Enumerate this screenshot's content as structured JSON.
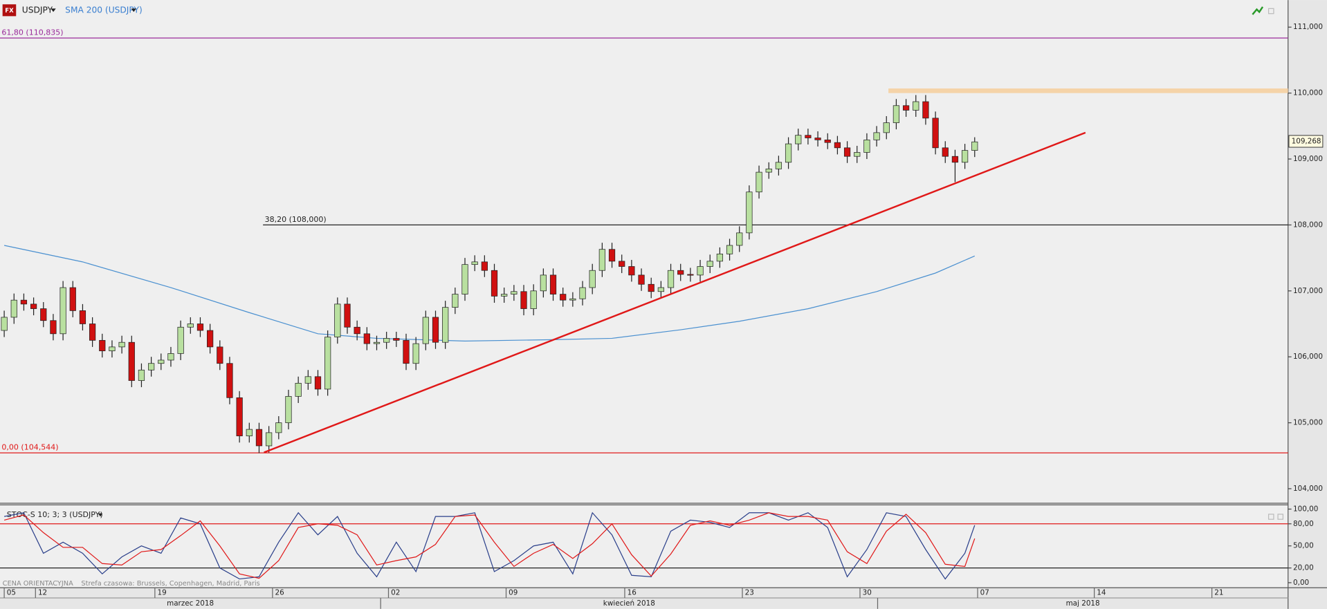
{
  "header": {
    "symbol": "USDJPY",
    "indicator": "SMA 200 (USDJPY)",
    "icon": "FX"
  },
  "footer": {
    "note": "CENA ORIENTACYJNA",
    "timezone": "Strefa czasowa: Brussels, Copenhagen, Madrid, Paris"
  },
  "chart_data": [
    {
      "type": "candlestick",
      "title": "USDJPY",
      "up_color": "#b9e0a0",
      "down_color": "#d01010",
      "xlim": [
        -0.43,
        130.97
      ],
      "ylim": [
        103.78,
        111.41
      ],
      "yticks": [
        {
          "value": 104,
          "label": "104,000"
        },
        {
          "value": 105,
          "label": "105,000"
        },
        {
          "value": 106,
          "label": "106,000"
        },
        {
          "value": 107,
          "label": "107,000"
        },
        {
          "value": 108,
          "label": "108,000"
        },
        {
          "value": 109,
          "label": "109,000"
        },
        {
          "value": 110,
          "label": "110,000"
        },
        {
          "value": 111,
          "label": "111,000"
        }
      ],
      "xticks": [
        {
          "value": 0,
          "label": "05"
        },
        {
          "value": 3.19,
          "label": "12"
        },
        {
          "value": 15.37,
          "label": "19"
        },
        {
          "value": 27.37,
          "label": "26"
        },
        {
          "value": 39.2,
          "label": "02"
        },
        {
          "value": 51.2,
          "label": "09"
        },
        {
          "value": 63.3,
          "label": "16"
        },
        {
          "value": 75.3,
          "label": "23"
        },
        {
          "value": 87.3,
          "label": "30"
        },
        {
          "value": 99.3,
          "label": "07"
        },
        {
          "value": 111.2,
          "label": "14"
        },
        {
          "value": 123.2,
          "label": "21"
        }
      ],
      "months": [
        "marzec 2018",
        "kwiecień 2018",
        "maj 2018"
      ],
      "month_bounds": [
        38.4,
        89.1
      ],
      "open": [
        106.4,
        106.6,
        106.86,
        106.8,
        106.73,
        106.55,
        106.35,
        107.05,
        106.7,
        106.5,
        106.25,
        106.09,
        106.15,
        106.22,
        105.64,
        105.8,
        105.9,
        105.95,
        106.05,
        106.45,
        106.5,
        106.4,
        106.15,
        105.9,
        105.38,
        104.8,
        104.9,
        104.65,
        104.85,
        105.0,
        105.4,
        105.6,
        105.7,
        105.51,
        106.3,
        106.8,
        106.45,
        106.35,
        106.2,
        106.22,
        106.28,
        106.25,
        105.9,
        106.2,
        106.6,
        106.22,
        106.75,
        106.95,
        107.4,
        107.44,
        107.31,
        106.92,
        106.95,
        106.99,
        106.73,
        107.0,
        107.24,
        106.95,
        106.86,
        106.88,
        107.05,
        107.31,
        107.63,
        107.45,
        107.37,
        107.24,
        107.1,
        106.99,
        107.05,
        107.31,
        107.25,
        107.24,
        107.37,
        107.45,
        107.56,
        107.69,
        107.88,
        108.5,
        108.8,
        108.85,
        108.95,
        109.23,
        109.36,
        109.32,
        109.29,
        109.25,
        109.17,
        109.04,
        109.1,
        109.29,
        109.4,
        109.55,
        109.81,
        109.74,
        109.87,
        109.62,
        109.17,
        109.04,
        108.95,
        109.13
      ],
      "high": [
        106.7,
        106.96,
        106.96,
        106.9,
        106.83,
        106.65,
        107.15,
        107.15,
        106.8,
        106.6,
        106.35,
        106.25,
        106.32,
        106.32,
        105.9,
        106.0,
        106.05,
        106.15,
        106.55,
        106.6,
        106.6,
        106.5,
        106.25,
        106.0,
        105.48,
        105.0,
        105.0,
        104.95,
        105.1,
        105.5,
        105.7,
        105.8,
        105.8,
        106.4,
        106.9,
        106.9,
        106.55,
        106.45,
        106.32,
        106.38,
        106.38,
        106.35,
        106.3,
        106.7,
        106.7,
        106.85,
        107.05,
        107.5,
        107.54,
        107.54,
        107.41,
        107.05,
        107.09,
        107.09,
        107.1,
        107.34,
        107.34,
        107.05,
        106.98,
        107.15,
        107.41,
        107.73,
        107.73,
        107.55,
        107.47,
        107.34,
        107.2,
        107.15,
        107.41,
        107.41,
        107.35,
        107.47,
        107.55,
        107.66,
        107.79,
        107.98,
        108.6,
        108.9,
        108.95,
        109.05,
        109.33,
        109.46,
        109.46,
        109.42,
        109.39,
        109.35,
        109.27,
        109.2,
        109.39,
        109.5,
        109.65,
        109.91,
        109.91,
        109.97,
        109.97,
        109.72,
        109.27,
        109.14,
        109.23,
        109.33
      ],
      "low": [
        106.3,
        106.5,
        106.7,
        106.63,
        106.45,
        106.25,
        106.25,
        106.6,
        106.4,
        106.15,
        105.99,
        105.99,
        106.05,
        105.54,
        105.54,
        105.7,
        105.8,
        105.85,
        105.95,
        106.35,
        106.3,
        106.05,
        105.8,
        105.28,
        104.7,
        104.7,
        104.54,
        104.55,
        104.75,
        104.9,
        105.3,
        105.5,
        105.41,
        105.41,
        106.2,
        106.35,
        106.25,
        106.1,
        106.1,
        106.12,
        106.15,
        105.8,
        105.8,
        106.1,
        106.12,
        106.12,
        106.65,
        106.85,
        107.3,
        107.21,
        106.82,
        106.82,
        106.85,
        106.63,
        106.63,
        106.9,
        106.85,
        106.76,
        106.76,
        106.78,
        106.95,
        107.21,
        107.35,
        107.27,
        107.14,
        107.0,
        106.89,
        106.89,
        106.95,
        107.15,
        107.14,
        107.14,
        107.27,
        107.35,
        107.46,
        107.59,
        107.78,
        108.4,
        108.7,
        108.75,
        108.85,
        109.13,
        109.22,
        109.19,
        109.15,
        109.07,
        108.94,
        108.94,
        109.0,
        109.19,
        109.3,
        109.45,
        109.64,
        109.64,
        109.52,
        109.07,
        108.94,
        108.65,
        108.85,
        109.03
      ],
      "close": [
        106.6,
        106.86,
        106.8,
        106.73,
        106.55,
        106.35,
        107.05,
        106.7,
        106.5,
        106.25,
        106.09,
        106.15,
        106.22,
        105.64,
        105.8,
        105.9,
        105.95,
        106.05,
        106.45,
        106.5,
        106.4,
        106.15,
        105.9,
        105.38,
        104.8,
        104.9,
        104.65,
        104.85,
        105.0,
        105.4,
        105.6,
        105.7,
        105.51,
        106.3,
        106.8,
        106.45,
        106.35,
        106.2,
        106.22,
        106.28,
        106.25,
        105.9,
        106.2,
        106.6,
        106.22,
        106.75,
        106.95,
        107.4,
        107.44,
        107.31,
        106.92,
        106.95,
        106.99,
        106.73,
        107.0,
        107.24,
        106.95,
        106.86,
        106.88,
        107.05,
        107.31,
        107.63,
        107.45,
        107.37,
        107.24,
        107.1,
        106.99,
        107.05,
        107.31,
        107.25,
        107.24,
        107.37,
        107.45,
        107.56,
        107.69,
        107.88,
        108.5,
        108.8,
        108.85,
        108.95,
        109.23,
        109.36,
        109.32,
        109.29,
        109.25,
        109.17,
        109.04,
        109.1,
        109.29,
        109.4,
        109.55,
        109.81,
        109.74,
        109.87,
        109.62,
        109.17,
        109.04,
        108.95,
        109.13,
        109.26
      ],
      "sma": {
        "name": "SMA 200 (USDJPY)",
        "color": "#4a90d0",
        "x": [
          0,
          8,
          17,
          25,
          32,
          38,
          47,
          56,
          62,
          69,
          75,
          82,
          89,
          95,
          99
        ],
        "values": [
          107.69,
          107.44,
          107.05,
          106.67,
          106.35,
          106.28,
          106.24,
          106.26,
          106.28,
          106.41,
          106.54,
          106.73,
          106.99,
          107.27,
          107.53
        ]
      },
      "trendline": {
        "color": "#e01818",
        "x": [
          26.5,
          110.3
        ],
        "values": [
          104.55,
          109.4
        ]
      },
      "levels": [
        {
          "label": "61,80 (110,835)",
          "value": 110.835,
          "color": "#9a2a9a"
        },
        {
          "label": "38,20 (108,000)",
          "value": 108.0,
          "color": "#222222",
          "x_from": 26.4
        },
        {
          "label": "0,00 (104,544)",
          "value": 104.544,
          "color": "#e01818"
        }
      ],
      "zone": {
        "from": 110.0,
        "to": 110.07,
        "x_from": 90.2,
        "color": "#f5d3a8"
      },
      "last_price": {
        "value": 109.268,
        "label": "109,268"
      }
    },
    {
      "type": "line",
      "title": "STOC-S 10; 3; 3 (USDJPY)",
      "ylim": [
        -6.9,
        105.7
      ],
      "yticks": [
        {
          "value": 100,
          "label": "100,00"
        },
        {
          "value": 80,
          "label": "80,00"
        },
        {
          "value": 50,
          "label": "50,00"
        },
        {
          "value": 20,
          "label": "20,00"
        },
        {
          "value": 0,
          "label": "0,00"
        }
      ],
      "levels": [
        {
          "value": 80,
          "color": "#e01818"
        },
        {
          "value": 20,
          "color": "#222222"
        }
      ],
      "x": [
        0,
        2,
        4,
        6,
        8,
        10,
        12,
        14,
        16,
        18,
        20,
        22,
        24,
        26,
        28,
        30,
        32,
        34,
        36,
        38,
        40,
        42,
        44,
        46,
        48,
        50,
        52,
        54,
        56,
        58,
        60,
        62,
        64,
        66,
        68,
        70,
        72,
        74,
        76,
        78,
        80,
        82,
        84,
        86,
        88,
        90,
        92,
        94,
        96,
        98,
        99
      ],
      "series": [
        {
          "color": "#2a3f8a",
          "values": [
            90,
            95,
            40,
            55,
            40,
            12,
            35,
            50,
            40,
            88,
            80,
            20,
            5,
            8,
            55,
            95,
            65,
            90,
            40,
            8,
            55,
            15,
            90,
            90,
            95,
            15,
            30,
            50,
            55,
            12,
            95,
            65,
            10,
            8,
            70,
            85,
            82,
            75,
            95,
            95,
            85,
            95,
            75,
            8,
            45,
            95,
            90,
            45,
            5,
            40,
            78
          ]
        },
        {
          "color": "#e01818",
          "values": [
            85,
            92,
            68,
            48,
            48,
            26,
            24,
            42,
            45,
            64,
            84,
            50,
            12,
            6,
            30,
            75,
            80,
            78,
            65,
            24,
            30,
            35,
            52,
            90,
            92,
            55,
            22,
            40,
            52,
            33,
            53,
            80,
            38,
            9,
            39,
            78,
            84,
            78,
            85,
            95,
            90,
            90,
            85,
            42,
            26,
            70,
            93,
            68,
            25,
            22,
            60
          ]
        }
      ]
    }
  ]
}
